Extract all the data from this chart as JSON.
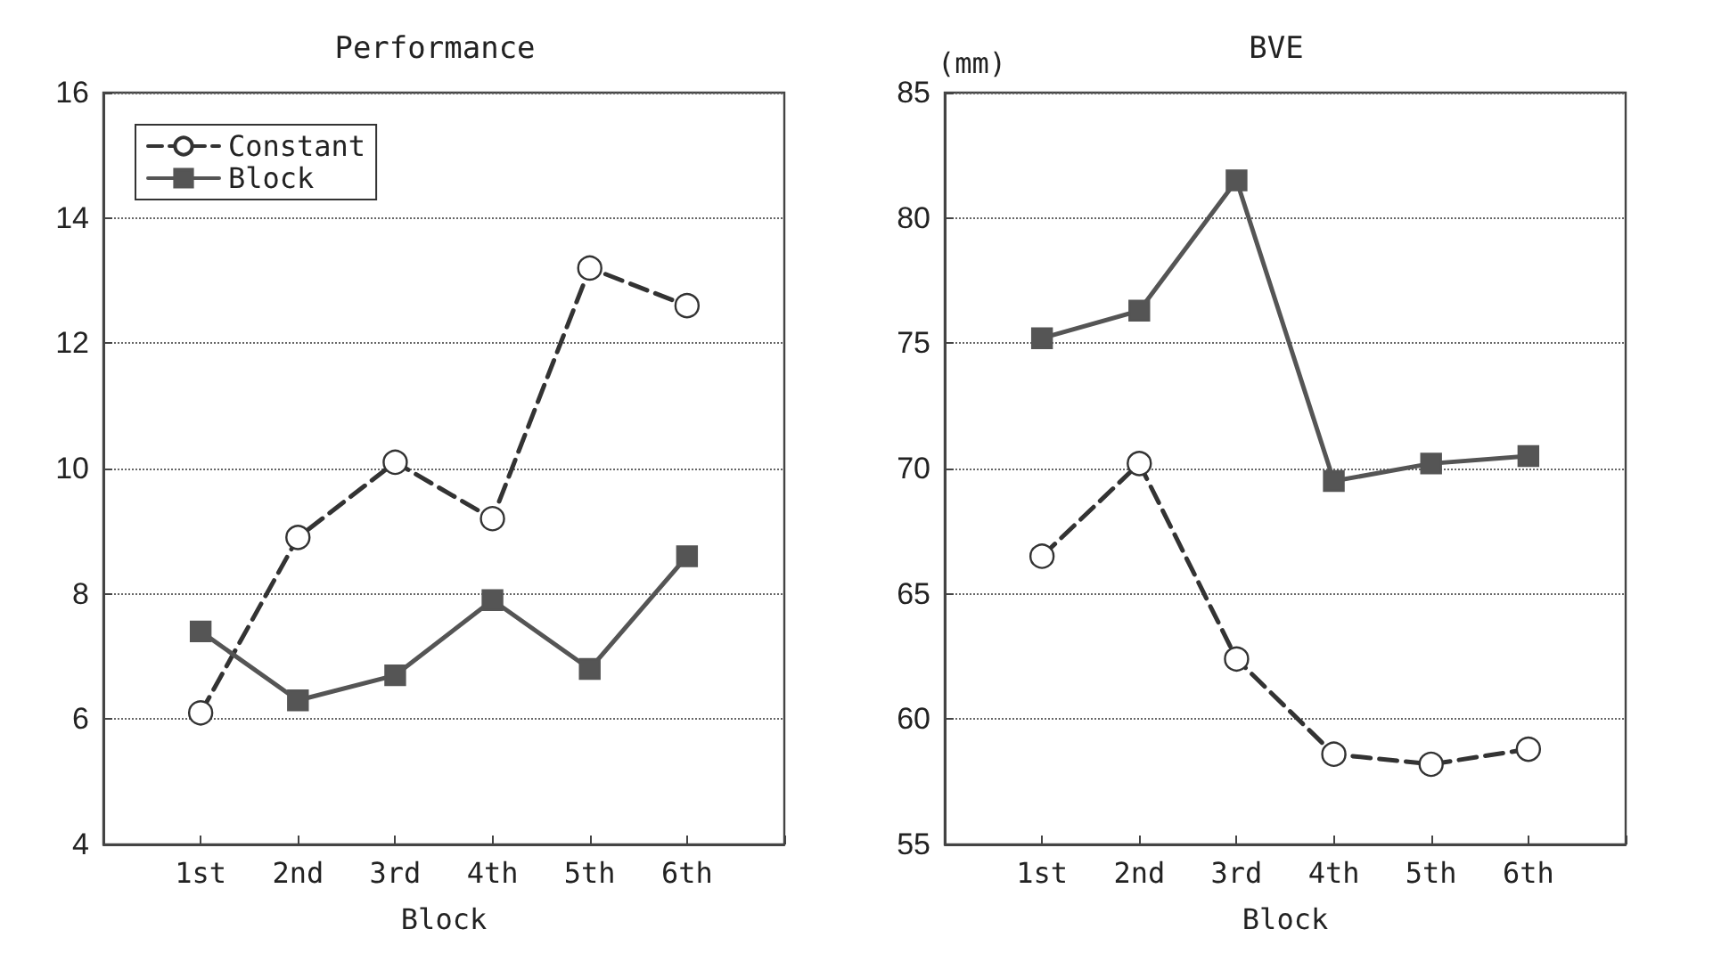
{
  "chart_data": [
    {
      "type": "line",
      "title": "Performance",
      "xlabel": "Block",
      "categories": [
        null,
        "1st",
        "2nd",
        "3rd",
        "4th",
        "5th",
        "6th",
        null
      ],
      "ylim": [
        4,
        16
      ],
      "yticks": [
        4,
        6,
        8,
        10,
        12,
        14,
        16
      ],
      "grid": "y",
      "legend": "top left",
      "series": [
        {
          "name": "Constant",
          "color": "#333333",
          "marker": "circle",
          "line_style": "dashed",
          "values": [
            null,
            6.1,
            8.9,
            10.1,
            9.2,
            13.2,
            12.6,
            null
          ]
        },
        {
          "name": "Block",
          "color": "#555555",
          "marker": "square",
          "line_style": "solid",
          "values": [
            null,
            7.4,
            6.3,
            6.7,
            7.9,
            6.8,
            8.6,
            null
          ]
        }
      ]
    },
    {
      "type": "line",
      "title": "BVE",
      "xlabel": "Block",
      "ylabel": "(mm)",
      "categories": [
        null,
        "1st",
        "2nd",
        "3rd",
        "4th",
        "5th",
        "6th",
        null
      ],
      "ylim": [
        55,
        85
      ],
      "yticks": [
        55,
        60,
        65,
        70,
        75,
        80,
        85
      ],
      "grid": "y",
      "legend": false,
      "series": [
        {
          "color": "#333333",
          "marker": "circle",
          "line_style": "dashed",
          "values": [
            null,
            66.5,
            70.2,
            62.4,
            58.6,
            58.2,
            58.8,
            null
          ]
        },
        {
          "color": "#555555",
          "marker": "square",
          "line_style": "solid",
          "values": [
            null,
            75.2,
            76.3,
            81.5,
            69.5,
            70.2,
            70.5,
            null
          ]
        }
      ]
    }
  ]
}
